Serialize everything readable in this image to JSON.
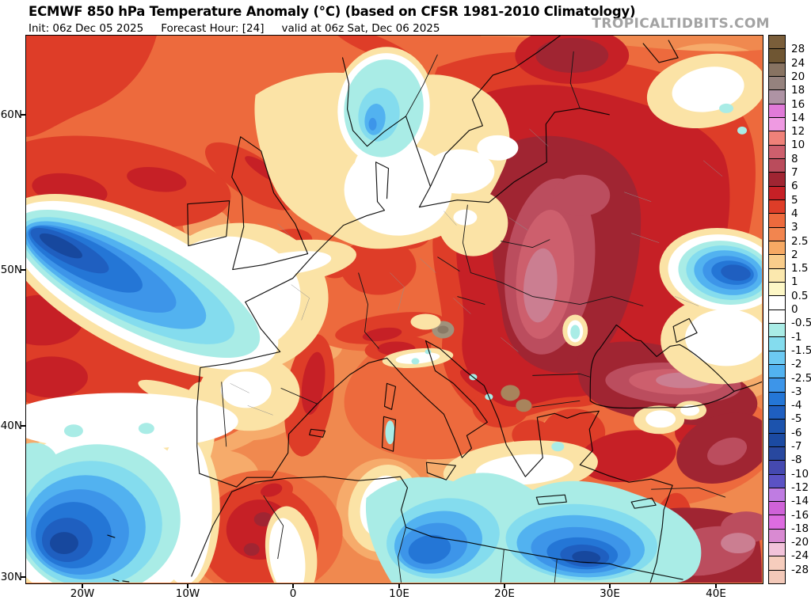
{
  "header": {
    "title": "ECMWF 850 hPa Temperature Anomaly (°C) (based on CFSR 1981-2010 Climatology)",
    "init": "Init: 06z Dec 05 2025",
    "forecast_hour": "Forecast Hour: [24]",
    "valid": "valid at 06z Sat, Dec 06 2025",
    "watermark": "TROPICALTIDBITS.COM"
  },
  "axes": {
    "y_labels": [
      "60N",
      "50N",
      "40N",
      "30N"
    ],
    "x_labels": [
      "20W",
      "10W",
      "0",
      "10E",
      "20E",
      "30E",
      "40E"
    ]
  },
  "colorbar": {
    "labels": [
      "28",
      "24",
      "20",
      "18",
      "16",
      "14",
      "12",
      "10",
      "8",
      "7",
      "6",
      "5",
      "4",
      "3",
      "2.5",
      "2",
      "1.5",
      "1",
      "0.5",
      "0",
      "-0.5",
      "-1",
      "-1.5",
      "-2",
      "-2.5",
      "-3",
      "-4",
      "-5",
      "-6",
      "-7",
      "-8",
      "-10",
      "-12",
      "-14",
      "-16",
      "-18",
      "-20",
      "-24",
      "-28"
    ],
    "colors": [
      "#7a5e3a",
      "#6f5633",
      "#887362",
      "#95827e",
      "#ae93a4",
      "#e07ad8",
      "#ef9ae2",
      "#ef8179",
      "#cd5f6d",
      "#ba4c5c",
      "#a02532",
      "#c62026",
      "#de3d28",
      "#ed6a3d",
      "#f2854f",
      "#f6a964",
      "#f9cd8b",
      "#fbe8ae",
      "#fdf7c6",
      "#ffffff",
      "#ffffff",
      "#a9ece6",
      "#84dcee",
      "#6cc9f2",
      "#52b2f0",
      "#3d95e9",
      "#2476d6",
      "#1f5fc0",
      "#1c53ad",
      "#1b4aa2",
      "#28489f",
      "#4549b0",
      "#5b52c4",
      "#bf7ce2",
      "#cf62d8",
      "#dd6ce0",
      "#d98ad2",
      "#f2c3da",
      "#f6cdbd",
      "#f3c9b9"
    ],
    "textured_indexes": [
      0,
      30,
      37
    ]
  },
  "chart_data": {
    "type": "heatmap",
    "title": "ECMWF 850 hPa Temperature Anomaly (°C) (based on CFSR 1981-2010 Climatology)",
    "subtitle": "Init: 06z Dec 05 2025 | Forecast Hour: [24] | valid at 06z Sat, Dec 06 2025",
    "x_ticks": [
      "20W",
      "10W",
      "0",
      "10E",
      "20E",
      "30E",
      "40E"
    ],
    "y_ticks": [
      "60N",
      "50N",
      "40N",
      "30N"
    ],
    "colorbar_values": [
      28,
      24,
      20,
      18,
      16,
      14,
      12,
      10,
      8,
      7,
      6,
      5,
      4,
      3,
      2.5,
      2,
      1.5,
      1,
      0.5,
      0,
      -0.5,
      -1,
      -1.5,
      -2,
      -2.5,
      -3,
      -4,
      -5,
      -6,
      -7,
      -8,
      -10,
      -12,
      -14,
      -16,
      -18,
      -20,
      -24,
      -28
    ],
    "units": "°C",
    "legend_position": "right"
  }
}
